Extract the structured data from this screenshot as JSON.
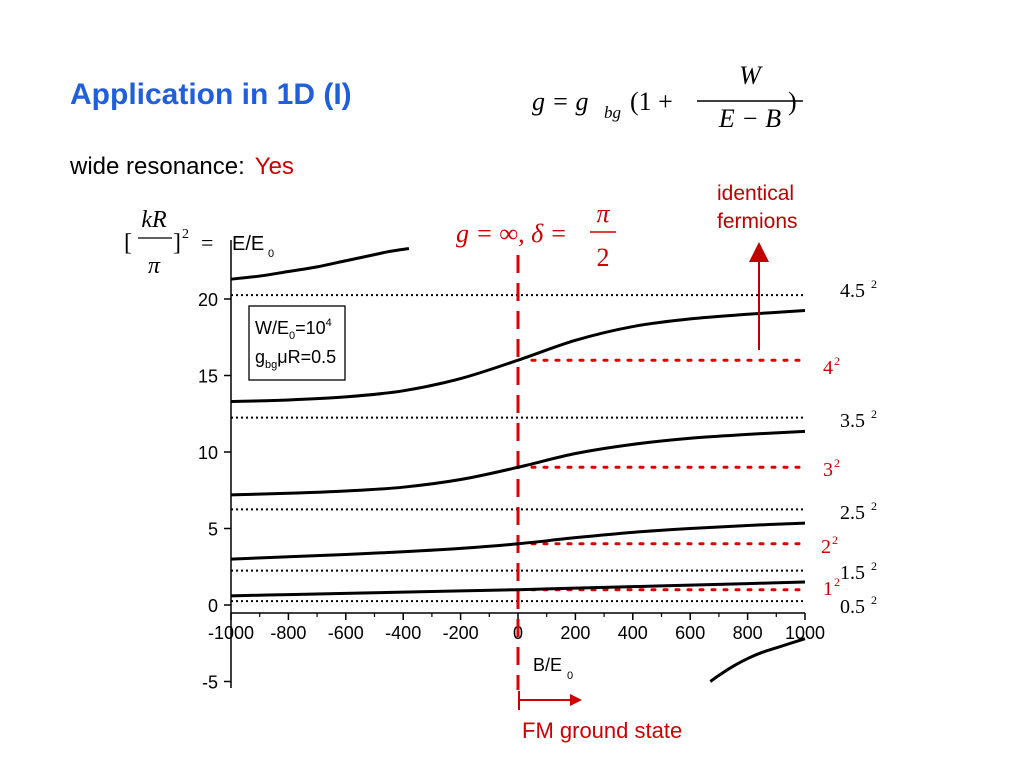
{
  "title": "Application in 1D (I)",
  "subtitle": {
    "label": "wide resonance:",
    "value": "Yes"
  },
  "formula": {
    "lhs": "g = g",
    "lhs_sub": "bg",
    "open": "(1 +",
    "numerator": "W",
    "denominator": "E − B",
    "close": ")"
  },
  "resonance_condition": {
    "part1": "g = ∞, δ =",
    "numerator": "π",
    "denominator": "2"
  },
  "energy_label": {
    "bracket_open": "[",
    "numerator": "kR",
    "denominator": "π",
    "bracket_close": "]",
    "power": "2",
    "equals": "=",
    "axis_text": "E/E",
    "axis_sub": "0"
  },
  "annotation_identical": {
    "line1": "identical",
    "line2": "fermions"
  },
  "fm_ground_state": "FM ground state",
  "parameter_box": {
    "line1": "W/E",
    "line1_sub": "0",
    "line1_rest": "=10",
    "line1_sup": "4",
    "line2": "g",
    "line2_sub": "bg",
    "line2_rest": "μR=0.5"
  },
  "chart_data": {
    "type": "line",
    "xlabel": "B/E",
    "xlabel_sub": "0",
    "ylabel": "E/E0",
    "xlim": [
      -1000,
      1000
    ],
    "ylim": [
      -5,
      23
    ],
    "x_ticks": [
      -1000,
      -800,
      -600,
      -400,
      -200,
      0,
      200,
      400,
      600,
      800,
      1000
    ],
    "x_tick_labels": [
      "-1000",
      "-800",
      "-600",
      "-400",
      "-200",
      "0",
      "200",
      "400",
      "600",
      "800",
      "1000"
    ],
    "y_ticks": [
      -5,
      0,
      5,
      10,
      15,
      20
    ],
    "y_tick_labels": [
      "-5",
      "0",
      "5",
      "10",
      "15",
      "20"
    ],
    "bosonic_levels": [
      {
        "value": 0.25,
        "label_base": "0.5",
        "label_exp": "2"
      },
      {
        "value": 2.25,
        "label_base": "1.5",
        "label_exp": "2"
      },
      {
        "value": 6.25,
        "label_base": "2.5",
        "label_exp": "2"
      },
      {
        "value": 12.25,
        "label_base": "3.5",
        "label_exp": "2"
      },
      {
        "value": 20.25,
        "label_base": "4.5",
        "label_exp": "2"
      }
    ],
    "fermionic_levels": [
      {
        "value": 1,
        "label_base": "1",
        "label_exp": "2"
      },
      {
        "value": 4,
        "label_base": "2",
        "label_exp": "2"
      },
      {
        "value": 9,
        "label_base": "3",
        "label_exp": "2"
      },
      {
        "value": 16,
        "label_base": "4",
        "label_exp": "2"
      }
    ],
    "resonance_line_x": 0,
    "series": [
      {
        "x": [
          -1000,
          -800,
          -600,
          -400,
          -200,
          0,
          200,
          400,
          600,
          800,
          1000
        ],
        "y": [
          0.6,
          0.68,
          0.76,
          0.84,
          0.92,
          1.0,
          1.1,
          1.2,
          1.3,
          1.4,
          1.5
        ]
      },
      {
        "x": [
          -1000,
          -800,
          -600,
          -400,
          -200,
          0,
          200,
          400,
          600,
          800,
          1000
        ],
        "y": [
          3.0,
          3.15,
          3.3,
          3.48,
          3.7,
          4.0,
          4.4,
          4.75,
          5.0,
          5.2,
          5.35
        ]
      },
      {
        "x": [
          -1000,
          -800,
          -600,
          -400,
          -200,
          0,
          200,
          400,
          600,
          800,
          1000
        ],
        "y": [
          7.2,
          7.3,
          7.45,
          7.7,
          8.2,
          9.0,
          9.9,
          10.5,
          10.9,
          11.15,
          11.35
        ]
      },
      {
        "x": [
          -1000,
          -800,
          -600,
          -400,
          -200,
          0,
          200,
          400,
          600,
          800,
          1000
        ],
        "y": [
          13.3,
          13.4,
          13.6,
          14.0,
          14.8,
          16.0,
          17.3,
          18.2,
          18.7,
          19.0,
          19.25
        ]
      },
      {
        "x": [
          -1000,
          -900,
          -800,
          -700,
          -600,
          -500,
          -450,
          -380
        ],
        "y": [
          21.3,
          21.5,
          21.8,
          22.1,
          22.5,
          22.9,
          23.1,
          23.3
        ]
      },
      {
        "x": [
          670,
          700,
          750,
          800,
          850,
          900,
          950,
          1000
        ],
        "y": [
          -5.0,
          -4.6,
          -4.0,
          -3.5,
          -3.1,
          -2.8,
          -2.5,
          -2.2
        ]
      }
    ]
  }
}
